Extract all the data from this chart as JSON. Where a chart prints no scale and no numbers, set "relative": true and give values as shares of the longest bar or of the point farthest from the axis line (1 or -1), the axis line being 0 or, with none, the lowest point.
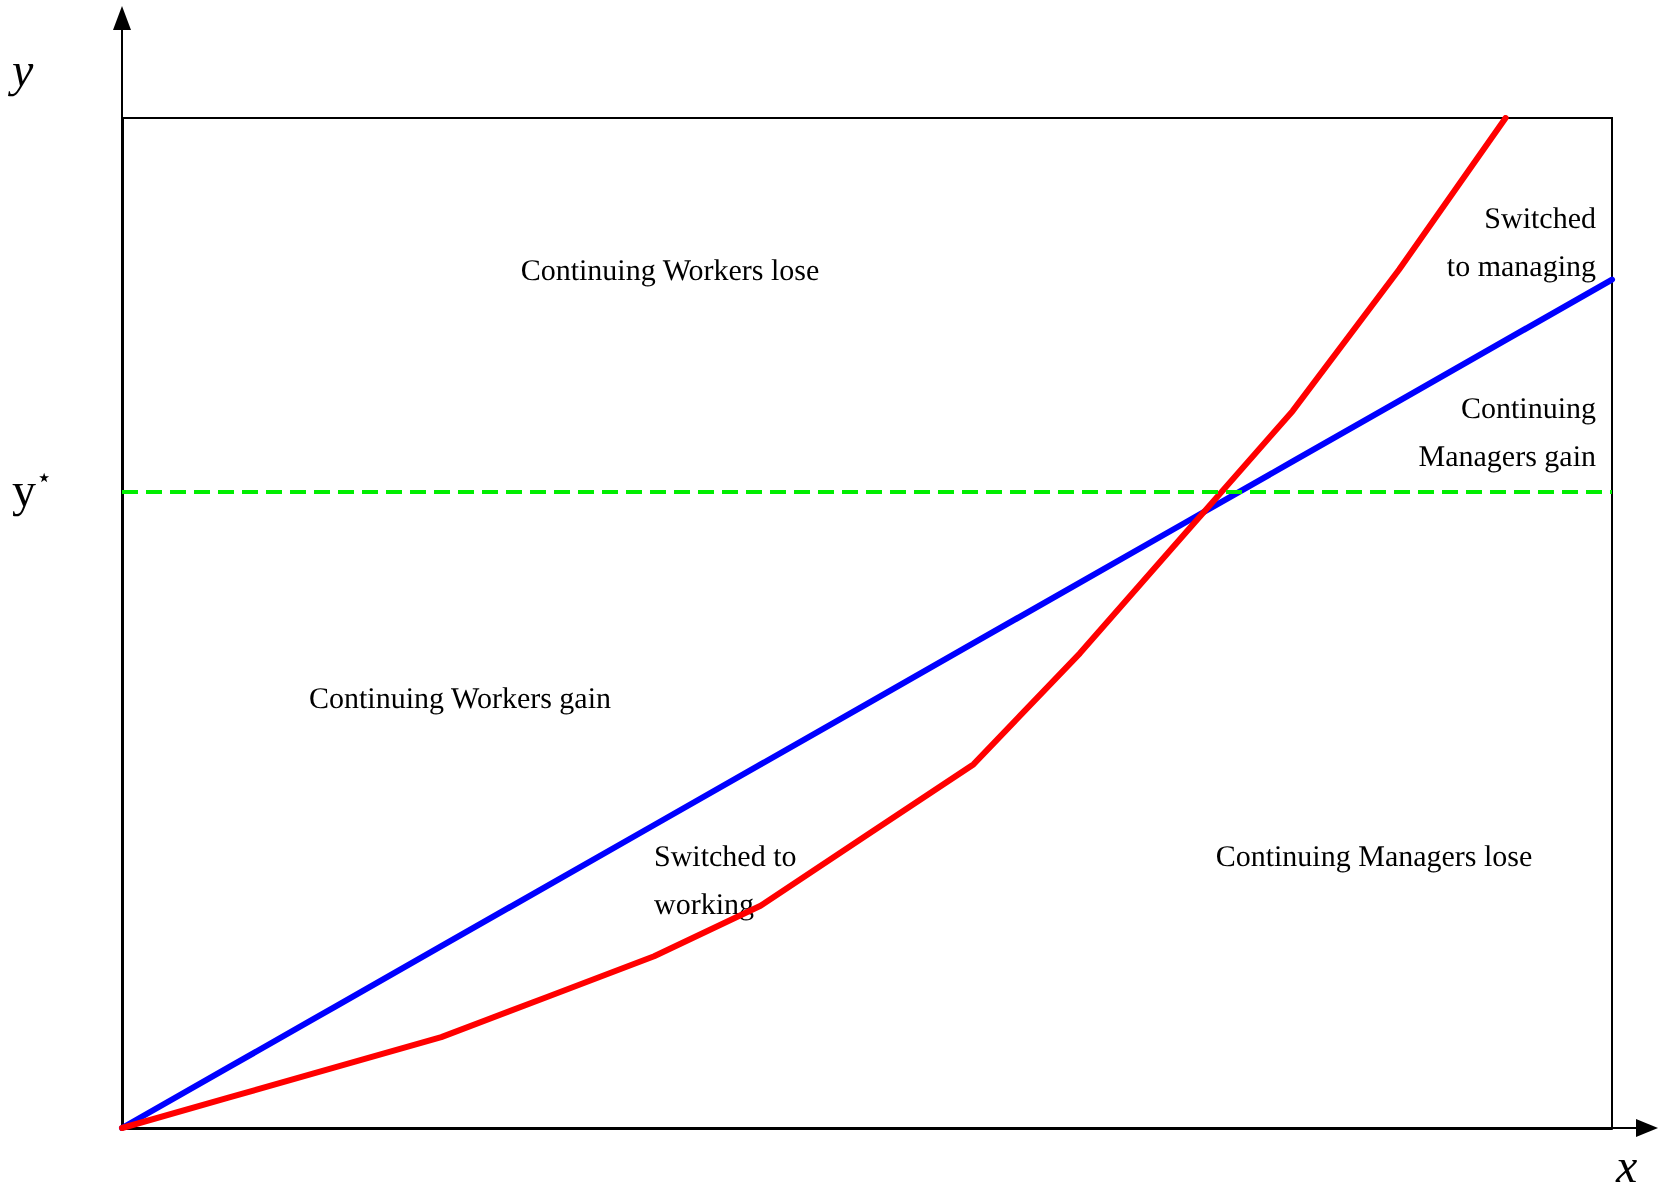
{
  "chart_data": {
    "type": "line",
    "relative": true,
    "xlabel": "x",
    "ylabel": "y",
    "marker": "none",
    "grid": false,
    "categories": [
      null,
      null,
      null,
      null,
      null,
      null,
      null,
      null,
      null,
      null,
      null,
      null,
      null,
      null,
      null
    ],
    "series": [
      {
        "color": "#0000ff",
        "values": [
          0,
          0.06,
          0.12,
          0.18,
          0.24,
          0.3,
          0.36,
          0.42,
          0.48,
          0.54,
          0.6,
          0.66,
          0.72,
          0.78,
          0.84
        ]
      },
      {
        "color": "#ff0000",
        "values": [
          0,
          0.03,
          0.06,
          0.09,
          0.13,
          0.17,
          0.22,
          0.29,
          0.36,
          0.47,
          0.59,
          0.71,
          0.85,
          1,
          null
        ]
      }
    ],
    "ref_lines": [
      {
        "axis": "y",
        "value": 0.63,
        "label": "y$^{⋆}$",
        "color": "#00ee00",
        "line_style": "dashed"
      }
    ],
    "annotations": [
      "Continuing Workers lose",
      "Switched\nto managing",
      "Continuing\nManagers gain",
      "Continuing Workers gain",
      "Switched to\nworking",
      "Continuing Managers lose"
    ]
  }
}
